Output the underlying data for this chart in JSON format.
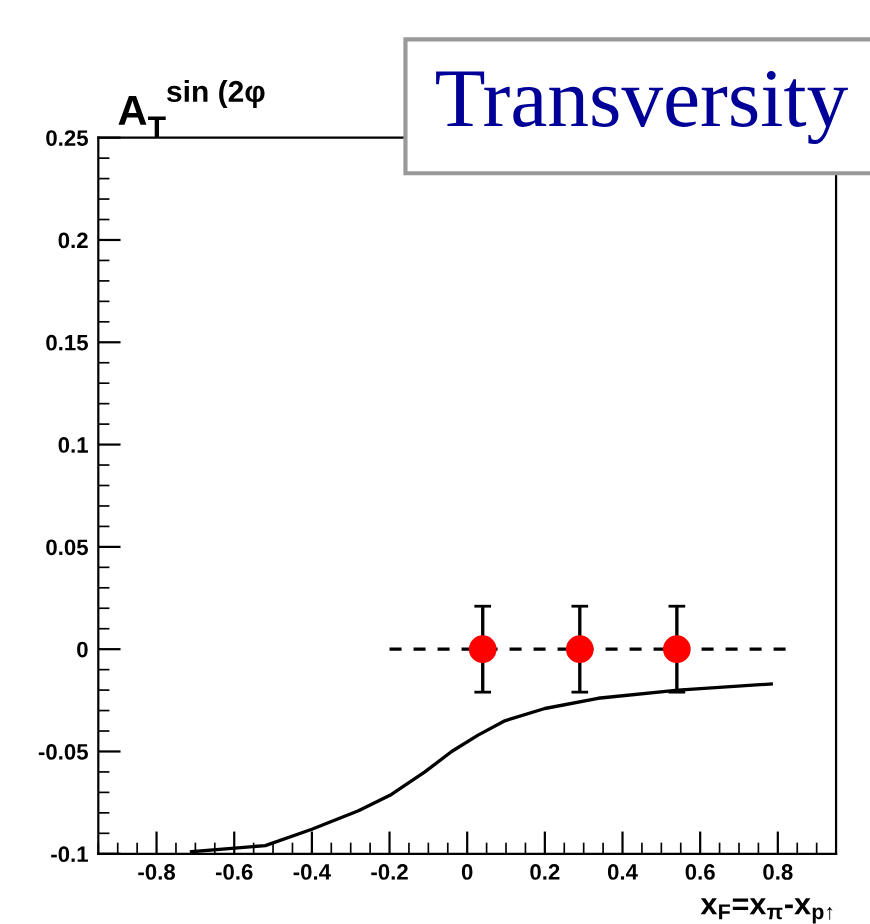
{
  "chart_data": {
    "type": "scatter",
    "title": "Transversity",
    "ylabel": "A$_{T}$$^{sin (2φ}$",
    "xlabel": "x$_{F}$=x$_{π}$-x$_{p↑}$",
    "xlim": [
      -0.95,
      0.95
    ],
    "xticks": [
      -0.8,
      -0.6,
      -0.4,
      -0.2,
      0,
      0.2,
      0.4,
      0.6,
      0.8
    ],
    "ylim": [
      -0.1,
      0.25
    ],
    "yticks": [
      -0.1,
      -0.05,
      0,
      0.05,
      0.1,
      0.15,
      0.2,
      0.25
    ],
    "grid": false,
    "legend": false,
    "series": [
      {
        "type": "line",
        "color": "#000000",
        "line_style": "dashed",
        "marker": "none",
        "x": [
          -0.2,
          0.82
        ],
        "values": [
          0,
          0
        ]
      },
      {
        "type": "line",
        "color": "#000000",
        "line_style": "solid",
        "marker": "none",
        "x": [
          -0.71,
          -0.52,
          -0.4,
          -0.28,
          -0.195,
          -0.109,
          -0.04,
          0.028,
          0.097,
          0.2,
          0.337,
          0.543,
          0.783
        ],
        "values": [
          -0.099,
          -0.096,
          -0.088,
          -0.079,
          -0.071,
          -0.06,
          -0.05,
          -0.042,
          -0.035,
          -0.029,
          -0.024,
          -0.02,
          -0.017
        ]
      },
      {
        "color": "#ff0000",
        "marker": "circle",
        "x": [
          0.04,
          0.29,
          0.54
        ],
        "values": [
          0,
          0,
          0
        ],
        "errors": [
          0.021,
          0.021,
          0.021
        ]
      }
    ]
  }
}
